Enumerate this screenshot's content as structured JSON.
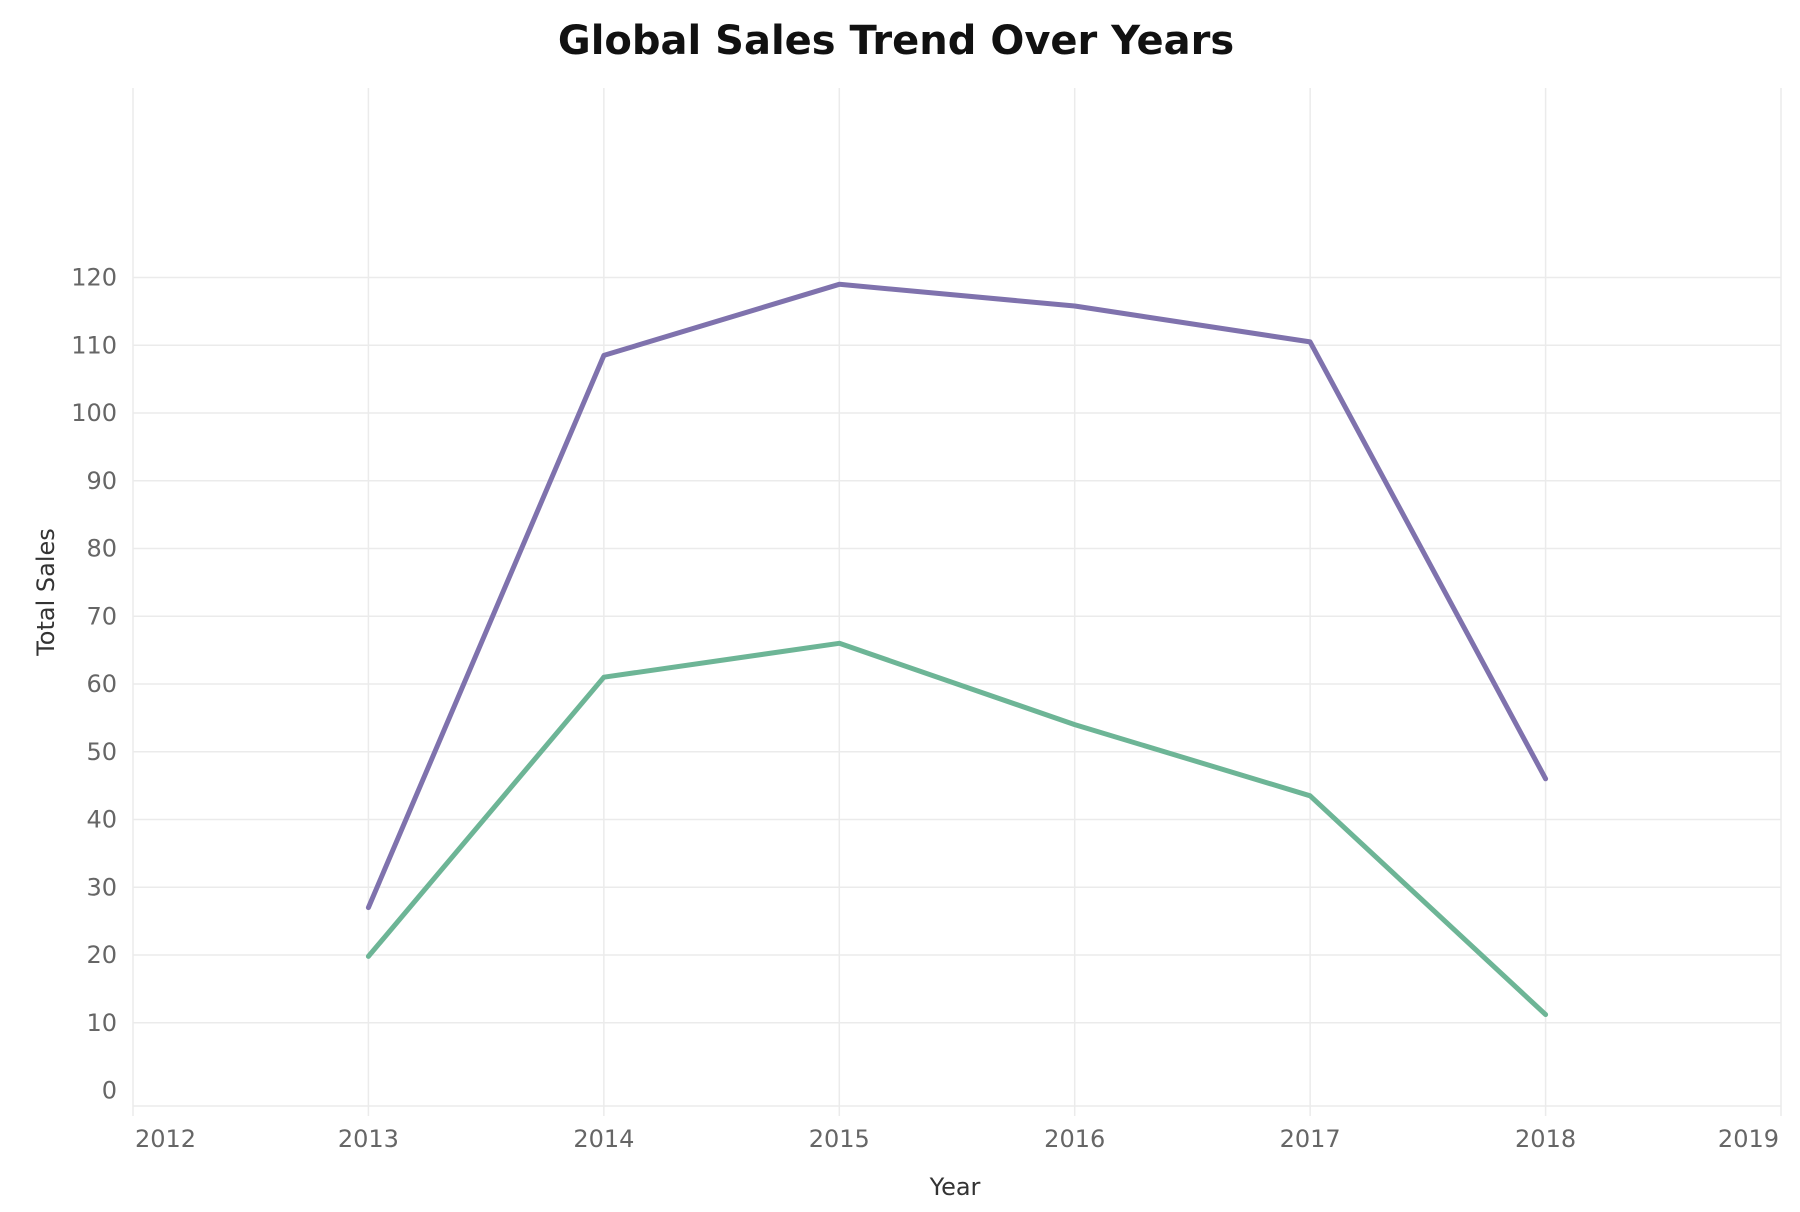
{
  "chart_data": {
    "type": "line",
    "title": "Global Sales Trend Over Years",
    "xlabel": "Year",
    "ylabel": "Total Sales",
    "x_ticks": [
      "2012",
      "2013",
      "2014",
      "2015",
      "2016",
      "2017",
      "2018",
      "2019"
    ],
    "y_ticks": [
      "0",
      "10",
      "20",
      "30",
      "40",
      "50",
      "60",
      "70",
      "80",
      "90",
      "100",
      "110",
      "120"
    ],
    "xlim": [
      2012,
      2019
    ],
    "ylim": [
      0,
      120
    ],
    "grid": true,
    "legend": "none",
    "x": [
      2013,
      2014,
      2015,
      2016,
      2017,
      2018
    ],
    "series": [
      {
        "color": "#7f72ad",
        "values": [
          27,
          108.5,
          119,
          115.8,
          110.5,
          46
        ]
      },
      {
        "color": "#6db596",
        "values": [
          19.8,
          61,
          66,
          54,
          43.5,
          11.2
        ]
      }
    ]
  }
}
